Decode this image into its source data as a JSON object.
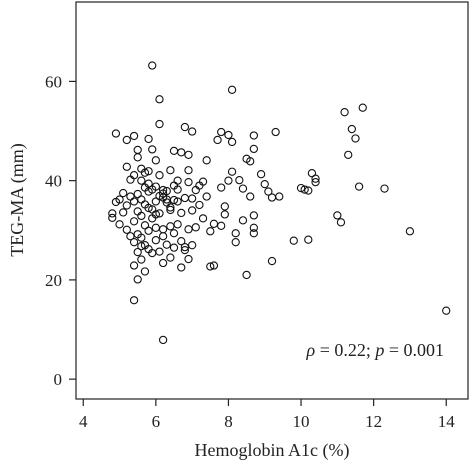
{
  "chart_data": {
    "type": "scatter",
    "title": "",
    "xlabel": "Hemoglobin A1c (%)",
    "ylabel": "TEG-MA (mm)",
    "xlim": [
      3.8,
      14.6
    ],
    "ylim": [
      -4,
      76
    ],
    "xticks": [
      "4",
      "6",
      "8",
      "10",
      "12",
      "14"
    ],
    "yticks": [
      "0",
      "20",
      "40",
      "60"
    ],
    "grid": false,
    "annotation": {
      "rho_symbol": "ρ",
      "rho_eq": " = 0.22; ",
      "p_symbol": "p",
      "p_eq": " = 0.001"
    },
    "points": [
      [
        5.9,
        63.2
      ],
      [
        6.1,
        56.4
      ],
      [
        8.1,
        58.3
      ],
      [
        6.2,
        7.9
      ],
      [
        14.0,
        13.8
      ],
      [
        5.4,
        15.9
      ],
      [
        11.7,
        54.7
      ],
      [
        11.2,
        53.8
      ],
      [
        11.4,
        50.4
      ],
      [
        11.5,
        48.5
      ],
      [
        11.3,
        45.2
      ],
      [
        11.6,
        38.8
      ],
      [
        12.3,
        38.4
      ],
      [
        13.0,
        29.8
      ],
      [
        11.1,
        31.6
      ],
      [
        11.0,
        33.0
      ],
      [
        10.4,
        39.7
      ],
      [
        10.4,
        40.4
      ],
      [
        10.3,
        41.5
      ],
      [
        10.2,
        38.0
      ],
      [
        10.0,
        38.5
      ],
      [
        10.1,
        38.2
      ],
      [
        9.8,
        27.9
      ],
      [
        10.2,
        28.1
      ],
      [
        9.4,
        36.8
      ],
      [
        9.2,
        23.8
      ],
      [
        9.3,
        49.8
      ],
      [
        8.7,
        49.1
      ],
      [
        8.7,
        46.4
      ],
      [
        8.7,
        33.0
      ],
      [
        8.7,
        30.5
      ],
      [
        8.7,
        29.4
      ],
      [
        8.9,
        41.3
      ],
      [
        9.0,
        39.3
      ],
      [
        9.1,
        37.8
      ],
      [
        9.2,
        36.6
      ],
      [
        8.6,
        36.8
      ],
      [
        8.6,
        43.9
      ],
      [
        8.5,
        44.4
      ],
      [
        8.4,
        38.4
      ],
      [
        8.3,
        40.1
      ],
      [
        8.5,
        21.0
      ],
      [
        8.2,
        29.4
      ],
      [
        8.2,
        27.6
      ],
      [
        8.0,
        49.2
      ],
      [
        8.1,
        47.8
      ],
      [
        8.0,
        40.0
      ],
      [
        8.1,
        41.8
      ],
      [
        7.8,
        49.8
      ],
      [
        7.7,
        48.2
      ],
      [
        7.8,
        38.6
      ],
      [
        7.9,
        34.8
      ],
      [
        7.9,
        33.2
      ],
      [
        7.8,
        30.9
      ],
      [
        7.6,
        31.3
      ],
      [
        7.5,
        29.8
      ],
      [
        7.6,
        22.9
      ],
      [
        7.5,
        22.7
      ],
      [
        7.4,
        44.1
      ],
      [
        7.3,
        39.8
      ],
      [
        7.2,
        39.0
      ],
      [
        7.0,
        36.4
      ],
      [
        7.1,
        38.1
      ],
      [
        7.0,
        27.0
      ],
      [
        6.9,
        30.2
      ],
      [
        6.8,
        26.0
      ],
      [
        7.2,
        35.1
      ],
      [
        7.3,
        32.4
      ],
      [
        7.0,
        49.9
      ],
      [
        6.8,
        50.8
      ],
      [
        6.9,
        45.2
      ],
      [
        6.7,
        45.7
      ],
      [
        6.5,
        46.0
      ],
      [
        6.6,
        40.0
      ],
      [
        6.6,
        38.2
      ],
      [
        6.9,
        39.7
      ],
      [
        6.9,
        42.1
      ],
      [
        6.4,
        42.1
      ],
      [
        6.3,
        37.9
      ],
      [
        6.5,
        36.1
      ],
      [
        6.4,
        34.6
      ],
      [
        6.7,
        33.5
      ],
      [
        6.6,
        31.2
      ],
      [
        6.5,
        29.4
      ],
      [
        6.7,
        27.8
      ],
      [
        6.8,
        26.6
      ],
      [
        6.4,
        24.5
      ],
      [
        6.7,
        22.5
      ],
      [
        6.2,
        23.4
      ],
      [
        6.1,
        25.7
      ],
      [
        6.3,
        27.1
      ],
      [
        6.2,
        30.2
      ],
      [
        6.0,
        30.5
      ],
      [
        5.9,
        32.4
      ],
      [
        6.1,
        33.4
      ],
      [
        6.3,
        35.6
      ],
      [
        6.2,
        36.6
      ],
      [
        6.0,
        38.8
      ],
      [
        6.1,
        41.1
      ],
      [
        6.0,
        44.1
      ],
      [
        5.8,
        41.9
      ],
      [
        5.9,
        46.3
      ],
      [
        5.8,
        48.4
      ],
      [
        6.1,
        51.4
      ],
      [
        5.4,
        49.0
      ],
      [
        5.2,
        48.2
      ],
      [
        4.9,
        49.5
      ],
      [
        5.5,
        46.2
      ],
      [
        5.5,
        44.7
      ],
      [
        5.6,
        42.4
      ],
      [
        5.4,
        41.1
      ],
      [
        5.6,
        40.0
      ],
      [
        5.7,
        38.6
      ],
      [
        5.8,
        37.8
      ],
      [
        5.5,
        37.3
      ],
      [
        5.6,
        36.2
      ],
      [
        5.4,
        35.8
      ],
      [
        5.7,
        35.2
      ],
      [
        5.8,
        34.5
      ],
      [
        5.5,
        33.8
      ],
      [
        5.6,
        32.9
      ],
      [
        5.4,
        31.8
      ],
      [
        5.7,
        31.0
      ],
      [
        5.8,
        29.9
      ],
      [
        5.5,
        29.2
      ],
      [
        5.6,
        28.5
      ],
      [
        5.4,
        27.6
      ],
      [
        5.7,
        27.0
      ],
      [
        5.8,
        26.2
      ],
      [
        5.5,
        25.6
      ],
      [
        5.6,
        24.1
      ],
      [
        5.4,
        22.9
      ],
      [
        5.7,
        21.7
      ],
      [
        5.5,
        20.1
      ],
      [
        5.3,
        36.8
      ],
      [
        5.2,
        35.0
      ],
      [
        5.1,
        33.6
      ],
      [
        5.0,
        31.2
      ],
      [
        5.2,
        30.1
      ],
      [
        5.3,
        28.8
      ],
      [
        5.1,
        37.5
      ],
      [
        5.0,
        36.2
      ],
      [
        4.8,
        33.4
      ],
      [
        4.8,
        32.5
      ],
      [
        4.9,
        35.7
      ],
      [
        5.3,
        40.2
      ],
      [
        5.2,
        42.8
      ],
      [
        6.0,
        35.8
      ],
      [
        6.1,
        36.9
      ],
      [
        6.2,
        37.4
      ],
      [
        6.3,
        36.2
      ],
      [
        5.9,
        34.2
      ],
      [
        6.0,
        33.2
      ],
      [
        6.4,
        34.1
      ],
      [
        6.2,
        38.1
      ],
      [
        5.8,
        39.4
      ],
      [
        6.5,
        39.0
      ],
      [
        6.6,
        35.8
      ],
      [
        6.8,
        36.5
      ],
      [
        6.0,
        28.0
      ],
      [
        6.2,
        28.8
      ],
      [
        6.4,
        30.8
      ],
      [
        6.5,
        26.5
      ],
      [
        5.9,
        25.4
      ],
      [
        5.6,
        26.8
      ],
      [
        5.7,
        41.6
      ],
      [
        5.9,
        38.2
      ],
      [
        7.1,
        30.6
      ],
      [
        7.0,
        34.0
      ],
      [
        8.4,
        32.0
      ],
      [
        7.4,
        36.8
      ],
      [
        6.9,
        24.2
      ]
    ]
  }
}
